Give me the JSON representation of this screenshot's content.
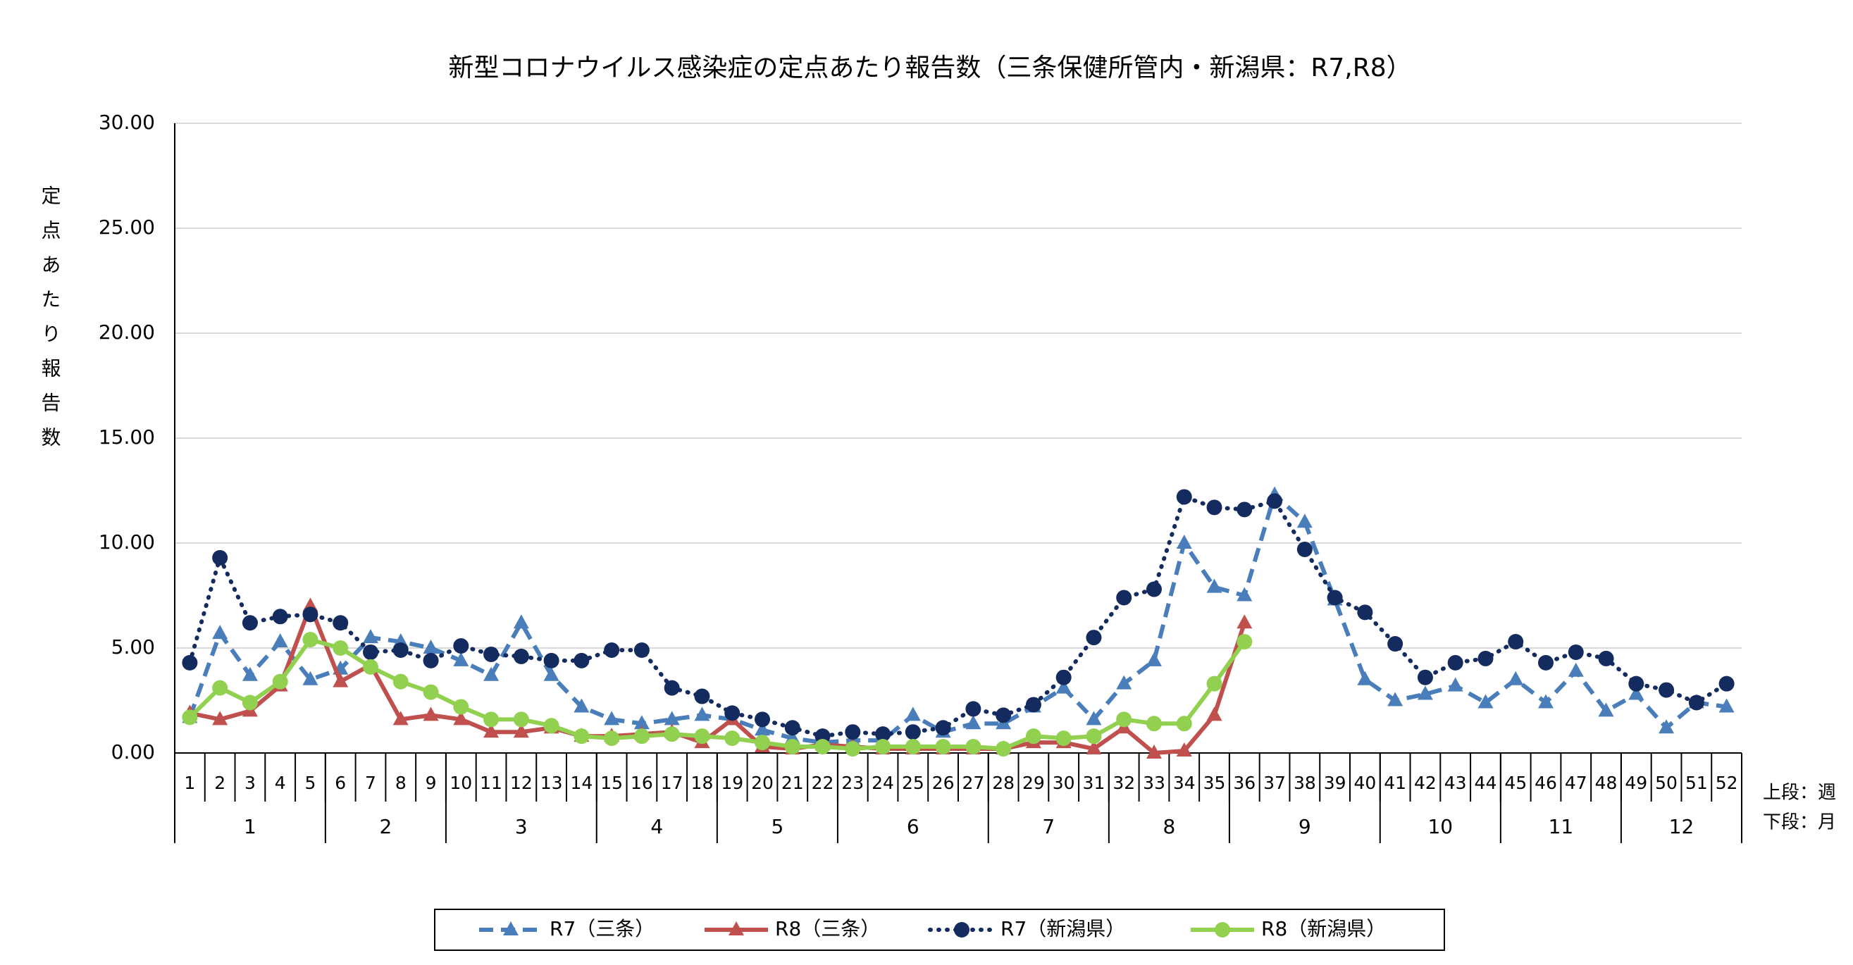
{
  "chart_data": {
    "type": "line",
    "title": "新型コロナウイルス感染症の定点あたり報告数（三条保健所管内・新潟県：R7,R8）",
    "y_label": "定点あたり報告数",
    "row_labels": [
      "上段：週",
      "下段：月"
    ],
    "categories": [
      "1",
      "2",
      "3",
      "4",
      "5",
      "6",
      "7",
      "8",
      "9",
      "10",
      "11",
      "12",
      "13",
      "14",
      "15",
      "16",
      "17",
      "18",
      "19",
      "20",
      "21",
      "22",
      "23",
      "24",
      "25",
      "26",
      "27",
      "28",
      "29",
      "30",
      "31",
      "32",
      "33",
      "34",
      "35",
      "36",
      "37",
      "38",
      "39",
      "40",
      "41",
      "42",
      "43",
      "44",
      "45",
      "46",
      "47",
      "48",
      "49",
      "50",
      "51",
      "52"
    ],
    "months": [
      "1",
      "2",
      "3",
      "4",
      "5",
      "6",
      "7",
      "8",
      "9",
      "10",
      "11",
      "12"
    ],
    "ylim": [
      0,
      30
    ],
    "yticks": [
      {
        "value": 0,
        "label": "0.00"
      },
      {
        "value": 5,
        "label": "5.00"
      },
      {
        "value": 10,
        "label": "10.00"
      },
      {
        "value": 15,
        "label": "15.00"
      },
      {
        "value": 20,
        "label": "20.00"
      },
      {
        "value": 25,
        "label": "25.00"
      },
      {
        "value": 30,
        "label": "30.00"
      }
    ],
    "grid": true,
    "legend": "bottom",
    "series": [
      {
        "name": "R7（三条）",
        "color": "#4a7ebb",
        "dash": "dashed",
        "marker": "triangle",
        "values": [
          1.7,
          5.7,
          3.7,
          5.3,
          3.5,
          4.0,
          5.5,
          5.3,
          5.0,
          4.4,
          3.7,
          6.2,
          3.7,
          2.2,
          1.6,
          1.4,
          1.6,
          1.8,
          1.6,
          1.1,
          0.7,
          0.5,
          0.6,
          0.6,
          1.8,
          1.0,
          1.4,
          1.4,
          2.2,
          3.1,
          1.6,
          3.3,
          4.4,
          10.0,
          7.9,
          7.5,
          12.3,
          11.0,
          7.3,
          3.5,
          2.5,
          2.8,
          3.2,
          2.4,
          3.5,
          2.4,
          3.9,
          2.0,
          2.8,
          1.2,
          2.4,
          2.2
        ]
      },
      {
        "name": "R8（三条）",
        "color": "#c0504d",
        "dash": "solid",
        "marker": "triangle",
        "values": [
          1.9,
          1.6,
          2.0,
          3.2,
          7.0,
          3.4,
          4.2,
          1.6,
          1.8,
          1.6,
          1.0,
          1.0,
          1.2,
          0.8,
          0.8,
          0.9,
          1.0,
          0.5,
          1.6,
          0.3,
          0.2,
          0.4,
          0.3,
          0.2,
          0.2,
          0.2,
          0.2,
          0.2,
          0.5,
          0.5,
          0.2,
          1.2,
          0.0,
          0.1,
          1.8,
          6.2,
          null,
          null,
          null,
          null,
          null,
          null,
          null,
          null,
          null,
          null,
          null,
          null,
          null,
          null,
          null,
          null
        ]
      },
      {
        "name": "R7（新潟県）",
        "color": "#132b5e",
        "dash": "dotted",
        "marker": "circle",
        "values": [
          4.3,
          9.3,
          6.2,
          6.5,
          6.6,
          6.2,
          4.8,
          4.9,
          4.4,
          5.1,
          4.7,
          4.6,
          4.4,
          4.4,
          4.9,
          4.9,
          3.1,
          2.7,
          1.9,
          1.6,
          1.2,
          0.8,
          1.0,
          0.9,
          1.0,
          1.2,
          2.1,
          1.8,
          2.3,
          3.6,
          5.5,
          7.4,
          7.8,
          12.2,
          11.7,
          11.6,
          12.0,
          9.7,
          7.4,
          6.7,
          5.2,
          3.6,
          4.3,
          4.5,
          5.3,
          4.3,
          4.8,
          4.5,
          3.3,
          3.0,
          2.4,
          3.3
        ]
      },
      {
        "name": "R8（新潟県）",
        "color": "#92d050",
        "dash": "solid",
        "marker": "circle",
        "values": [
          1.7,
          3.1,
          2.4,
          3.4,
          5.4,
          5.0,
          4.1,
          3.4,
          2.9,
          2.2,
          1.6,
          1.6,
          1.3,
          0.8,
          0.7,
          0.8,
          0.9,
          0.8,
          0.7,
          0.5,
          0.3,
          0.3,
          0.2,
          0.3,
          0.3,
          0.3,
          0.3,
          0.2,
          0.8,
          0.7,
          0.8,
          1.6,
          1.4,
          1.4,
          3.3,
          5.3,
          null,
          null,
          null,
          null,
          null,
          null,
          null,
          null,
          null,
          null,
          null,
          null,
          null,
          null,
          null,
          null
        ]
      }
    ]
  }
}
